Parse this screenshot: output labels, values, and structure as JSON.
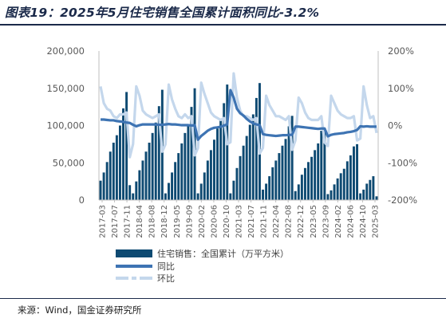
{
  "title": "图表19：2025年5月住宅销售全国累计面积同比-3.2%",
  "source": "来源：Wind，国金证券研究所",
  "colors": {
    "bar": "#0e4a72",
    "yoy": "#3e74b3",
    "mom": "#c4d7ec",
    "axis": "#bfbfbf",
    "text": "#595959"
  },
  "chart_data": {
    "type": "bar",
    "x_start": "2017-03",
    "x_end": "2025-05",
    "x_tick_labels": [
      "2017-03",
      "2017-07",
      "2017-11",
      "2018-04",
      "2018-08",
      "2018-12",
      "2019-05",
      "2019-09",
      "2020-02",
      "2020-06",
      "2020-10",
      "2021-03",
      "2021-07",
      "2021-11",
      "2022-04",
      "2022-08",
      "2022-12",
      "2023-05",
      "2023-09",
      "2024-02",
      "2024-06",
      "2024-10",
      "2025-03"
    ],
    "y_left": {
      "ylim": [
        0,
        200000
      ],
      "ticks": [
        "0",
        "50,000",
        "100,000",
        "150,000",
        "200,000"
      ]
    },
    "y_right": {
      "ylim": [
        -200,
        200
      ],
      "ticks": [
        "-200%",
        "-100%",
        "0%",
        "100%",
        "200%"
      ]
    },
    "series": [
      {
        "name": "住宅销售：全国累计（万平方米）",
        "type": "bar",
        "axis": "left",
        "values": [
          26000,
          37000,
          51000,
          65000,
          77000,
          87000,
          100000,
          123000,
          145000,
          20000,
          9000,
          25000,
          40000,
          53000,
          65000,
          77000,
          90000,
          104000,
          126000,
          148000,
          9000,
          23000,
          37000,
          51000,
          63000,
          76000,
          90000,
          102000,
          125000,
          150000,
          9000,
          22000,
          37000,
          53000,
          67000,
          81000,
          96000,
          108000,
          130000,
          155000,
          9000,
          26000,
          43000,
          59000,
          73000,
          86000,
          101000,
          115000,
          137000,
          157000,
          14000,
          22000,
          32000,
          44000,
          53000,
          63000,
          73000,
          82000,
          99000,
          113000,
          12000,
          21000,
          34000,
          43000,
          51000,
          58000,
          67000,
          76000,
          93000,
          95000,
          8000,
          13000,
          21000,
          29000,
          36000,
          42000,
          52000,
          60000,
          72000,
          75000,
          9000,
          14000,
          22000,
          27000,
          32000,
          5000
        ]
      },
      {
        "name": "同比",
        "type": "line",
        "axis": "right",
        "values": [
          16,
          16,
          15,
          14,
          14,
          12,
          11,
          10,
          8,
          7,
          2,
          -2,
          1,
          3,
          3,
          3,
          3,
          3,
          2,
          2,
          3,
          4,
          3,
          3,
          2,
          1,
          1,
          1,
          0,
          1,
          -38,
          -28,
          -21,
          -14,
          -9,
          -6,
          -5,
          -3,
          0,
          3,
          95,
          75,
          45,
          33,
          27,
          18,
          11,
          6,
          3,
          1,
          -23,
          -25,
          -26,
          -27,
          -28,
          -27,
          -26,
          -26,
          -25,
          -25,
          -3,
          -3,
          -4,
          -5,
          -6,
          -7,
          -8,
          -9,
          -8,
          -8,
          -29,
          -25,
          -23,
          -22,
          -21,
          -20,
          -18,
          -17,
          -15,
          -12,
          -2,
          -3,
          -2,
          -3,
          -3,
          -3
        ]
      },
      {
        "name": "环比",
        "type": "line",
        "axis": "right",
        "values": [
          105,
          60,
          45,
          40,
          25,
          20,
          30,
          30,
          35,
          -85,
          -50,
          105,
          80,
          40,
          30,
          25,
          20,
          25,
          30,
          -70,
          -50,
          110,
          70,
          45,
          25,
          20,
          30,
          20,
          25,
          -80,
          -60,
          115,
          85,
          60,
          35,
          25,
          20,
          15,
          20,
          -50,
          -45,
          140,
          75,
          40,
          25,
          25,
          20,
          15,
          20,
          -75,
          -60,
          80,
          55,
          40,
          25,
          25,
          20,
          15,
          25,
          -65,
          -40,
          75,
          60,
          35,
          20,
          15,
          15,
          15,
          25,
          -45,
          -55,
          80,
          60,
          40,
          30,
          25,
          20,
          20,
          25,
          -40,
          -35,
          105,
          55,
          20,
          25,
          -20
        ]
      }
    ],
    "legend_placement": "bottom-left",
    "grid": false
  }
}
